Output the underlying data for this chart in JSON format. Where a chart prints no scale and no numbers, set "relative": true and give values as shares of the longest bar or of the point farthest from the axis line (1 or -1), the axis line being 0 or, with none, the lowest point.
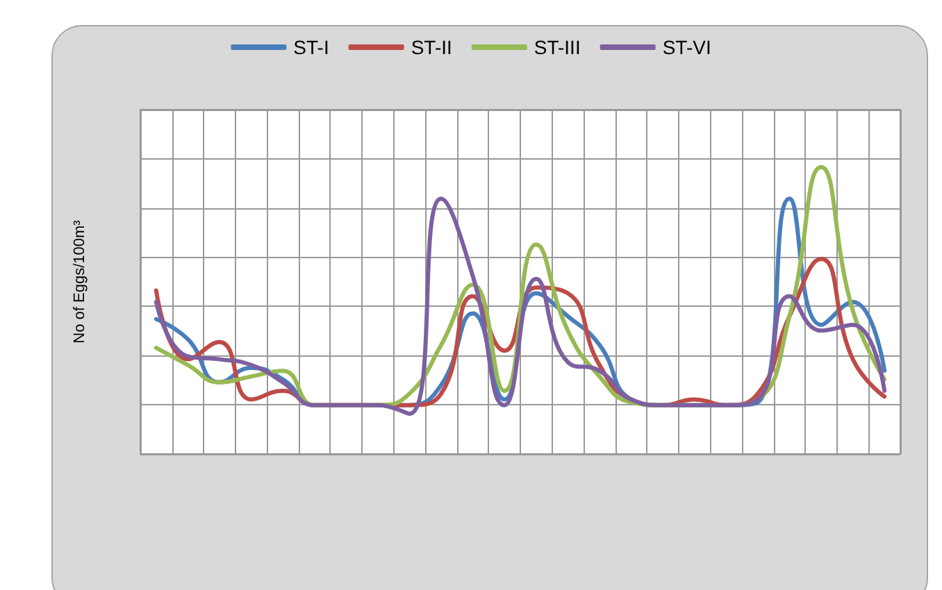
{
  "chart_data": {
    "type": "line",
    "ylabel": "No of Eggs/100m³",
    "relative": true,
    "grid": true,
    "legend": "top",
    "marker": "none",
    "line_style": "solid",
    "categories": [
      null,
      null,
      null,
      null,
      null,
      null,
      null,
      null,
      null,
      null,
      null,
      null,
      null,
      null,
      null,
      null,
      null,
      null,
      null,
      null,
      null,
      null,
      null,
      null
    ],
    "series": [
      {
        "name": "ST-I",
        "color": "#4a7ebb",
        "values": [
          0.47,
          0.4,
          0.25,
          0.3,
          0.26,
          0.17,
          0.17,
          0.17,
          0.17,
          0.24,
          0.49,
          0.19,
          0.56,
          0.48,
          0.38,
          0.19,
          0.17,
          0.17,
          0.17,
          0.18,
          0.89,
          0.45,
          0.53,
          0.29
        ]
      },
      {
        "name": "ST-II",
        "color": "#be4b48",
        "values": [
          0.57,
          0.33,
          0.39,
          0.19,
          0.22,
          0.17,
          0.17,
          0.17,
          0.17,
          0.21,
          0.55,
          0.36,
          0.58,
          0.56,
          0.31,
          0.19,
          0.17,
          0.19,
          0.17,
          0.21,
          0.48,
          0.68,
          0.33,
          0.2
        ]
      },
      {
        "name": "ST-III",
        "color": "#98b954",
        "values": [
          0.37,
          0.31,
          0.25,
          0.27,
          0.29,
          0.17,
          0.17,
          0.17,
          0.21,
          0.38,
          0.59,
          0.22,
          0.73,
          0.43,
          0.27,
          0.18,
          0.17,
          0.17,
          0.17,
          0.19,
          0.48,
          1.0,
          0.5,
          0.26
        ]
      },
      {
        "name": "ST-VI",
        "color": "#7d60a0",
        "values": [
          0.53,
          0.34,
          0.33,
          0.31,
          0.25,
          0.17,
          0.17,
          0.17,
          0.14,
          0.89,
          0.62,
          0.17,
          0.61,
          0.32,
          0.29,
          0.19,
          0.17,
          0.17,
          0.17,
          0.19,
          0.55,
          0.43,
          0.45,
          0.22
        ]
      }
    ]
  }
}
